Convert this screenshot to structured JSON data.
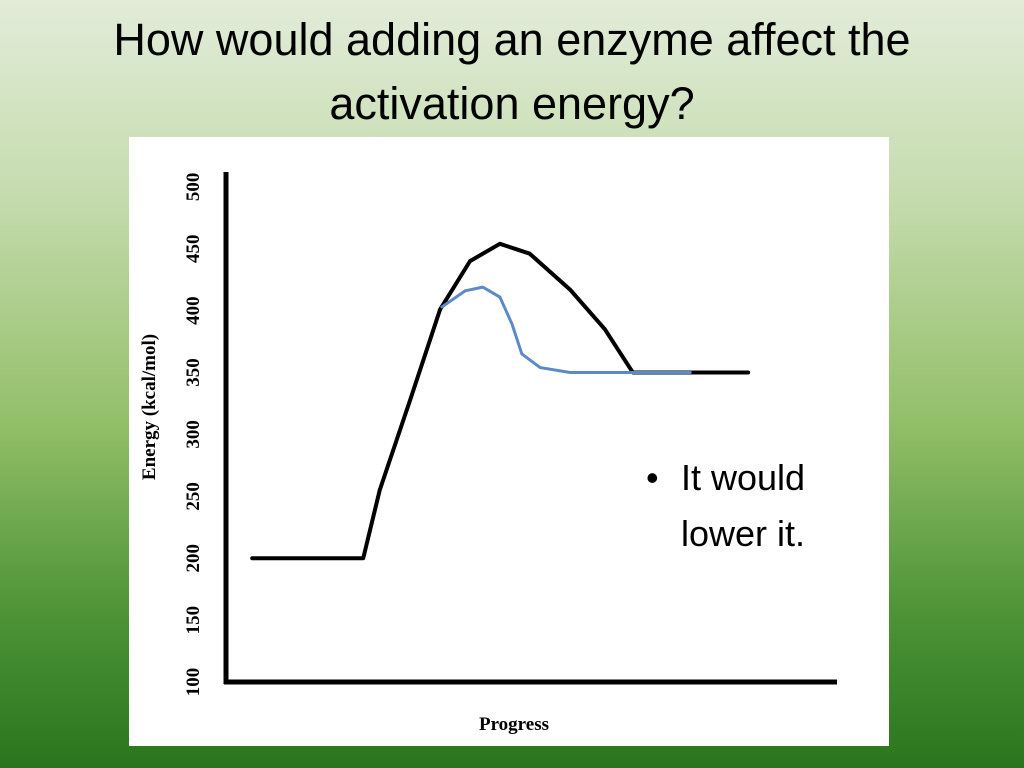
{
  "slide": {
    "title": "How would adding an enzyme affect the activation energy?",
    "bullet": "It would lower it."
  },
  "chart_data": {
    "type": "line",
    "xlabel": "Progress",
    "ylabel": "Energy (kcal/mol)",
    "xlim": [
      0,
      100
    ],
    "ylim": [
      100,
      512
    ],
    "yticks": [
      100,
      150,
      200,
      250,
      300,
      350,
      400,
      450,
      500
    ],
    "series": [
      {
        "color": "#000000",
        "x": [
          4.3,
          22.5,
          25.2,
          30.2,
          35.1,
          40,
          44.9,
          49.8,
          56.4,
          62.1,
          66.7,
          85.6
        ],
        "values": [
          200,
          200,
          255,
          328,
          401,
          440,
          454,
          446,
          417,
          385,
          350,
          350
        ]
      },
      {
        "color": "#5b8ac6",
        "x": [
          35.4,
          39.2,
          42.1,
          44.9,
          46.9,
          48.5,
          51.5,
          56.4,
          66.7,
          76.1
        ],
        "values": [
          403,
          416,
          419,
          411,
          389,
          365,
          354,
          350,
          350,
          350
        ]
      }
    ]
  }
}
